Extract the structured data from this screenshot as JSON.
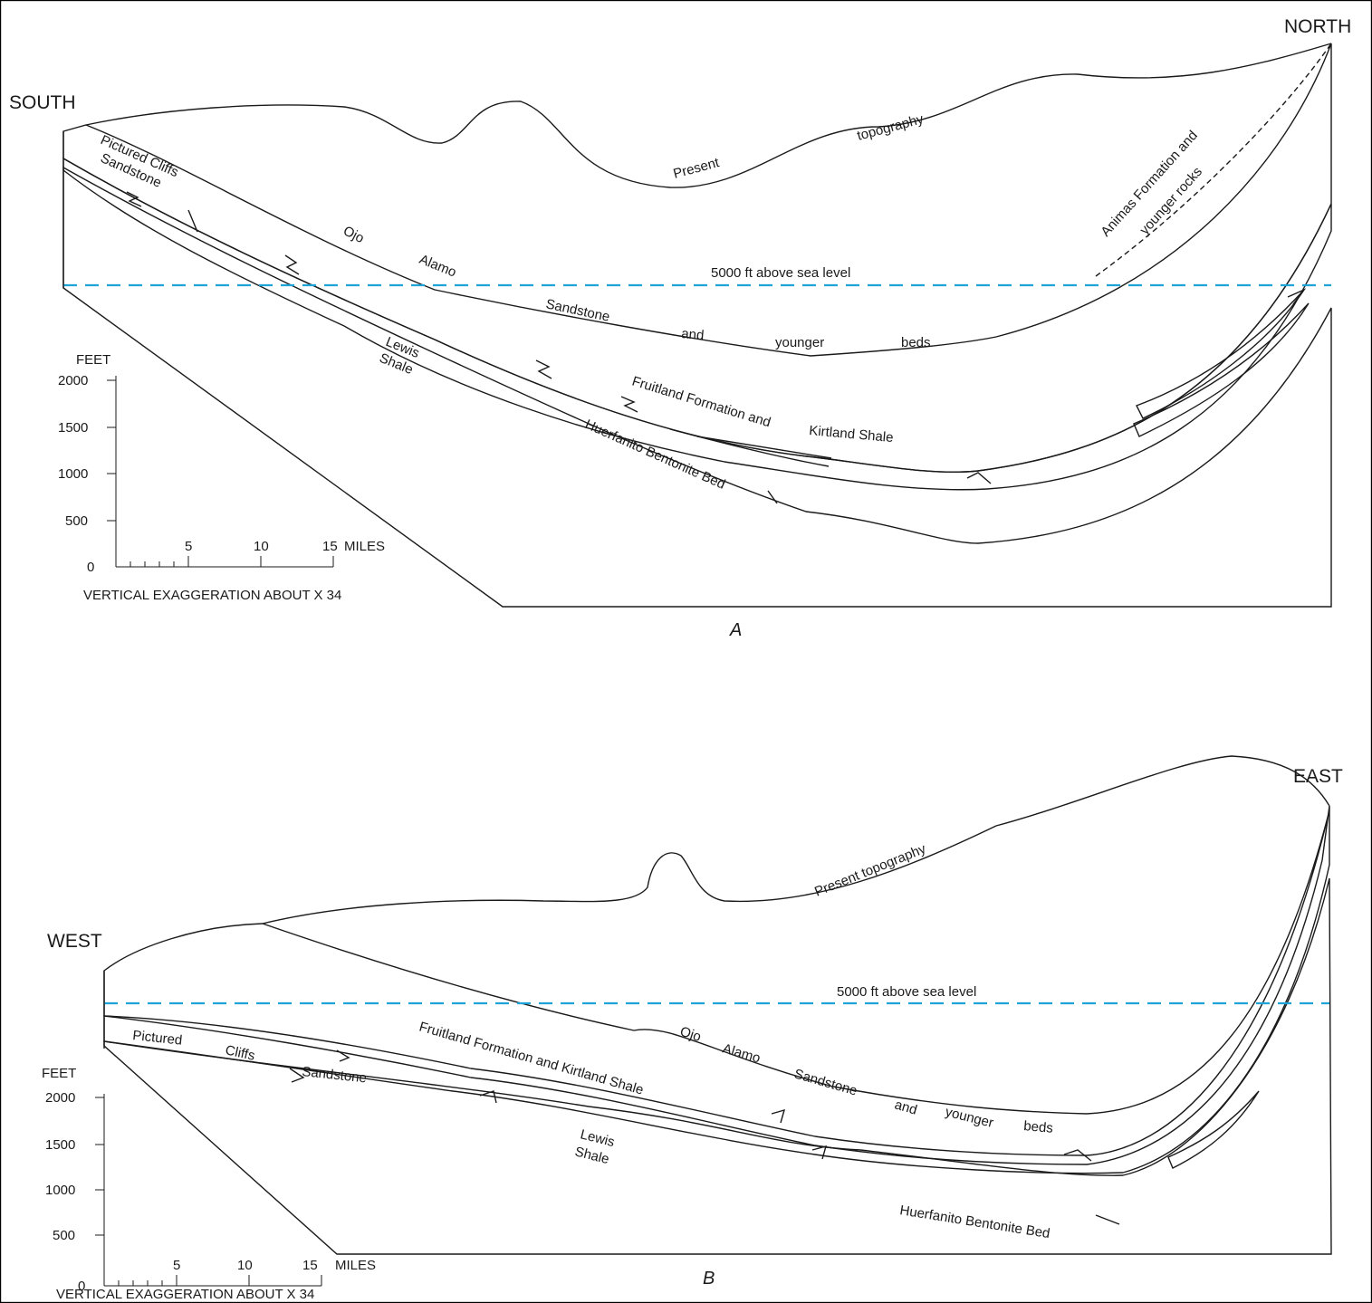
{
  "panel_a": {
    "letter": "A",
    "left_direction": "SOUTH",
    "right_direction": "NORTH",
    "sea_level_label": "5000 ft above sea level",
    "topography_words": [
      "Present",
      "topography"
    ],
    "pictured_cliffs": [
      "Pictured Cliffs",
      "Sandstone"
    ],
    "ojo_alamo_words": [
      "Ojo",
      "Alamo",
      "Sandstone",
      "and",
      "younger",
      "beds"
    ],
    "lewis_shale": [
      "Lewis",
      "Shale"
    ],
    "fruitland_words": [
      "Fruitland Formation and",
      "Kirtland Shale"
    ],
    "huerfanito": "Huerfanito Bentonite Bed",
    "animas": [
      "Animas Formation and",
      "younger rocks"
    ],
    "scale": {
      "unit_label": "FEET",
      "feet_ticks": [
        "2000",
        "1500",
        "1000",
        "500",
        "0"
      ],
      "mile_ticks": [
        "5",
        "10",
        "15"
      ],
      "mile_unit": "MILES",
      "exaggeration": "VERTICAL EXAGGERATION ABOUT X 34"
    }
  },
  "panel_b": {
    "letter": "B",
    "left_direction": "WEST",
    "right_direction": "EAST",
    "sea_level_label": "5000 ft above sea level",
    "topography_label": "Present topography",
    "pictured_cliffs_words": [
      "Pictured",
      "Cliffs",
      "Sandstone"
    ],
    "fruitland": "Fruitland Formation and Kirtland Shale",
    "ojo_alamo_words": [
      "Ojo",
      "Alamo",
      "Sandstone",
      "and",
      "younger",
      "beds"
    ],
    "lewis_shale": [
      "Lewis",
      "Shale"
    ],
    "huerfanito": "Huerfanito Bentonite Bed",
    "scale": {
      "unit_label": "FEET",
      "feet_ticks": [
        "2000",
        "1500",
        "1000",
        "500",
        "0"
      ],
      "mile_ticks": [
        "5",
        "10",
        "15"
      ],
      "mile_unit": "MILES",
      "exaggeration": "VERTICAL EXAGGERATION ABOUT X 34"
    }
  },
  "colors": {
    "tan_sandstone": "#ebe0c4",
    "green_shale": "#85996a",
    "yellow_cliffs": "#fff27e",
    "orange_tongue": "#f2c383",
    "sea_level_line": "#1fa3d6"
  }
}
